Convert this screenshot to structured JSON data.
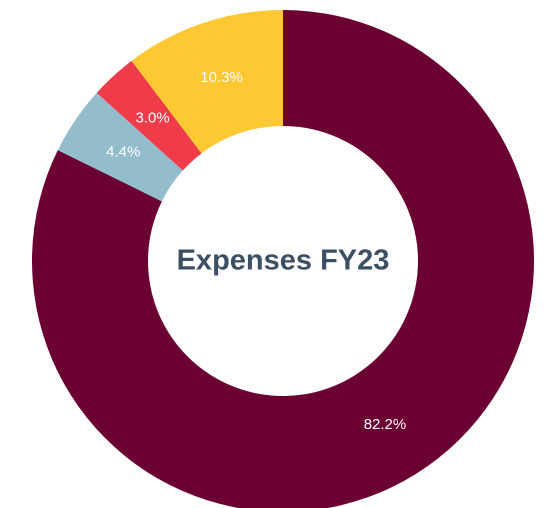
{
  "chart_data": {
    "type": "donut",
    "title": "Expenses FY23",
    "categories": [
      null,
      null,
      null,
      null
    ],
    "values": [
      82.2,
      4.4,
      3.0,
      10.3
    ],
    "value_labels": [
      "82.2%",
      "4.4%",
      "3.0%",
      "10.3%"
    ],
    "colors": [
      "#6b0033",
      "#93bccc",
      "#f03c4a",
      "#fec832"
    ]
  }
}
